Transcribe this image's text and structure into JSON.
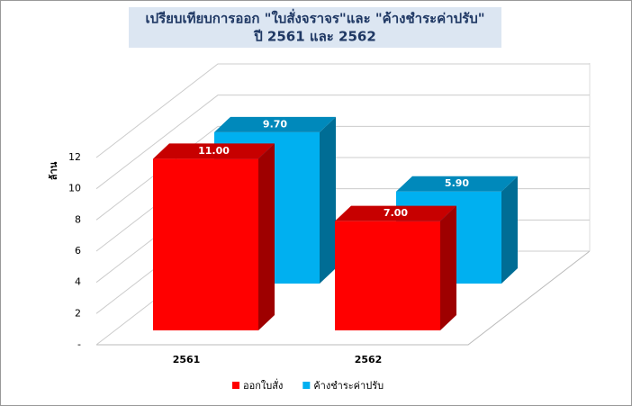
{
  "chart_data": {
    "type": "bar3d",
    "title": "เปรียบเทียบการออก \"ใบสั่งจราจร\"และ \"ค้างชำระค่าปรับ\"",
    "subtitle": "ปี 2561 และ 2562",
    "y_label": "ล้าน",
    "categories": [
      "2561",
      "2562"
    ],
    "series": [
      {
        "name": "ออกใบสั่ง",
        "color": "#ff0000",
        "values": [
          11,
          7
        ],
        "value_labels": [
          "11.00",
          "7.00"
        ]
      },
      {
        "name": "ค้างชำระค่าปรับ",
        "color": "#00b0f0",
        "values": [
          9.7,
          5.9
        ],
        "value_labels": [
          "9.70",
          "5.90"
        ]
      }
    ],
    "ylim": [
      0,
      12
    ],
    "yticks": [
      {
        "value": 0,
        "label": "-"
      },
      2,
      4,
      6,
      8,
      10,
      12
    ],
    "grid": true
  }
}
